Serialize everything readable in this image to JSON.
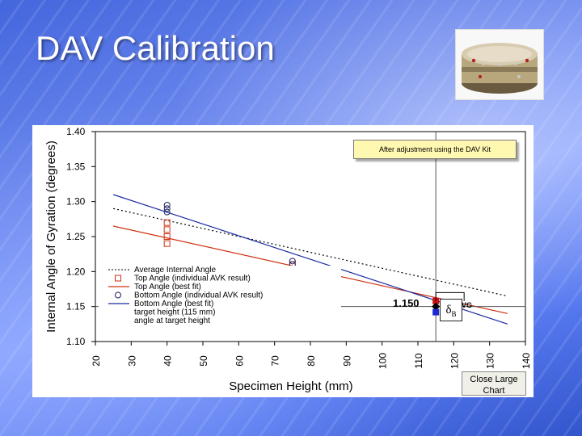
{
  "slide": {
    "title": "DAV Calibration"
  },
  "photo": {
    "icon": "dav-kit-photo"
  },
  "chart": {
    "callout": "After adjustment using the DAV Kit",
    "target_value_label": "1.150",
    "delta_symbol": "δ",
    "delta_subscript": "B",
    "partial_label": "VG",
    "close_button_label": "Close Large Chart"
  },
  "chart_data": {
    "type": "scatter",
    "title": "",
    "xlabel": "Specimen Height (mm)",
    "ylabel": "Internal Angle of Gyration (degrees)",
    "xlim": [
      20,
      140
    ],
    "ylim": [
      1.1,
      1.4
    ],
    "x_ticks": [
      "20",
      "30",
      "40",
      "50",
      "60",
      "70",
      "80",
      "90",
      "100",
      "110",
      "120",
      "130",
      "140"
    ],
    "y_ticks": [
      "1.10",
      "1.15",
      "1.20",
      "1.25",
      "1.30",
      "1.35",
      "1.40"
    ],
    "grid": false,
    "legend_placement": "bottom-left",
    "legend": [
      "Average Internal Angle",
      "Top Angle (individual AVK result)",
      "Top Angle (best fit)",
      "Bottom Angle (individual AVK result)",
      "Bottom Angle (best fit)",
      "target height (115 mm)",
      "angle at target height"
    ],
    "series": [
      {
        "kind": "line",
        "style": "dotted",
        "color": "#000000",
        "x": [
          25,
          135
        ],
        "y": [
          1.29,
          1.165
        ]
      },
      {
        "kind": "points",
        "marker": "square",
        "color": "#d03010",
        "x": [
          40,
          40,
          40,
          40,
          75,
          75
        ],
        "y": [
          1.27,
          1.26,
          1.25,
          1.24,
          1.21,
          1.195
        ]
      },
      {
        "kind": "line",
        "style": "solid",
        "color": "#d03010",
        "x": [
          25,
          135
        ],
        "y": [
          1.265,
          1.14
        ]
      },
      {
        "kind": "points",
        "marker": "circle",
        "color": "#202060",
        "x": [
          40,
          40,
          40,
          75,
          75
        ],
        "y": [
          1.295,
          1.29,
          1.285,
          1.215,
          1.21
        ]
      },
      {
        "kind": "line",
        "style": "solid",
        "color": "#1a2aa0",
        "x": [
          25,
          135
        ],
        "y": [
          1.31,
          1.125
        ]
      },
      {
        "kind": "vline",
        "style": "solid",
        "color": "#555555",
        "x": 115
      },
      {
        "kind": "hline",
        "style": "solid",
        "color": "#555555",
        "y": 1.15
      },
      {
        "kind": "target-markers",
        "x": [
          115,
          115,
          115
        ],
        "y": [
          1.158,
          1.15,
          1.142
        ],
        "colors": [
          "#d01010",
          "#000000",
          "#1a2ad0"
        ]
      }
    ]
  }
}
